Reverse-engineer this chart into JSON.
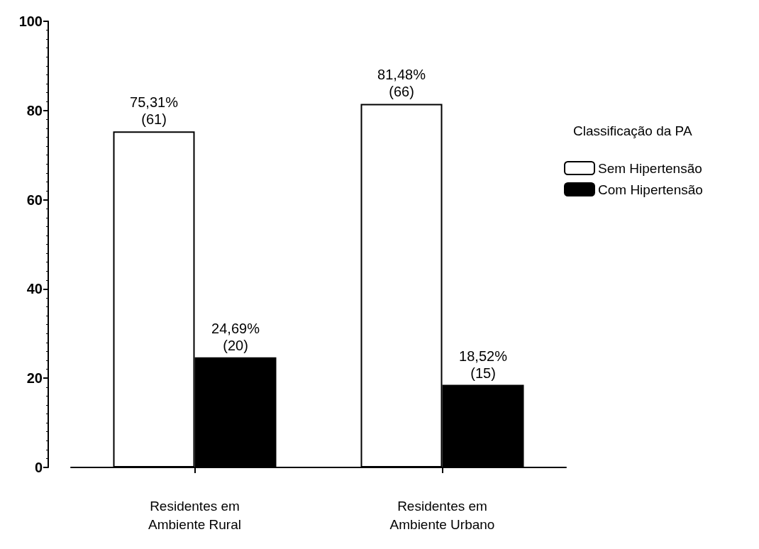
{
  "chart_data": {
    "type": "bar",
    "legend_title": "Classificação da PA",
    "categories": [
      "Residentes em\nAmbiente Rural",
      "Residentes em\nAmbiente Urbano"
    ],
    "series": [
      {
        "name": "Sem Hipertensão",
        "color": "#ffffff",
        "values": [
          75.31,
          81.48
        ],
        "value_labels": [
          "75,31%\n(61)",
          "81,48%\n(66)"
        ]
      },
      {
        "name": "Com Hipertensão",
        "color": "#000000",
        "values": [
          24.69,
          18.52
        ],
        "value_labels": [
          "24,69%\n(20)",
          "18,52%\n(15)"
        ]
      }
    ],
    "ylim": [
      0,
      100
    ],
    "yticks": [
      0,
      20,
      40,
      60,
      80,
      100
    ],
    "grid": false,
    "legend": "right"
  }
}
